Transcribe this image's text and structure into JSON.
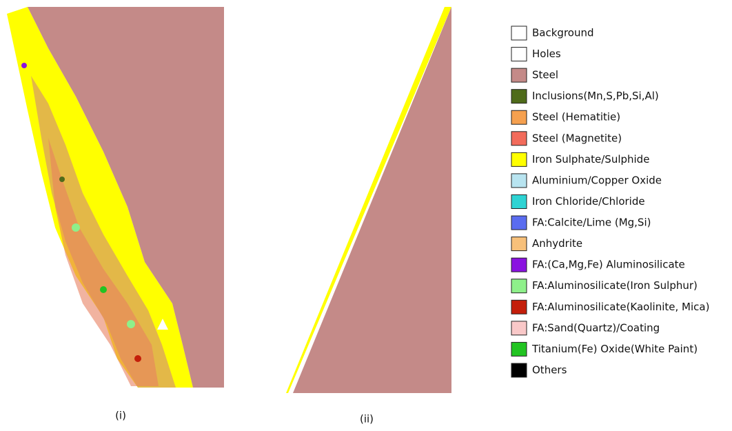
{
  "panels": [
    {
      "caption": "(i)"
    },
    {
      "caption": "(ii)"
    }
  ],
  "legend": {
    "items": [
      {
        "label": "Background",
        "color": "#ffffff"
      },
      {
        "label": "Holes",
        "color": "#ffffff"
      },
      {
        "label": "Steel",
        "color": "#c48a88"
      },
      {
        "label": "Inclusions(Mn,S,Pb,Si,Al)",
        "color": "#4f6b1a"
      },
      {
        "label": "Steel (Hematitie)",
        "color": "#f5a04f"
      },
      {
        "label": "Steel (Magnetite)",
        "color": "#f26b5b"
      },
      {
        "label": "Iron Sulphate/Sulphide",
        "color": "#ffff00"
      },
      {
        "label": "Aluminium/Copper Oxide",
        "color": "#b8e4f0"
      },
      {
        "label": "Iron Chloride/Chloride",
        "color": "#2ed3d3"
      },
      {
        "label": "FA:Calcite/Lime (Mg,Si)",
        "color": "#5a6cf0"
      },
      {
        "label": "Anhydrite",
        "color": "#f7c07a"
      },
      {
        "label": "FA:(Ca,Mg,Fe) Aluminosilicate",
        "color": "#8a12e0"
      },
      {
        "label": "FA:Aluminosilicate(Iron Sulphur)",
        "color": "#8ef08a"
      },
      {
        "label": "FA:Aluminosilicate(Kaolinite, Mica)",
        "color": "#c41e0a"
      },
      {
        "label": "FA:Sand(Quartz)/Coating",
        "color": "#f9c8c8"
      },
      {
        "label": "Titanium(Fe) Oxide(White Paint)",
        "color": "#22c422"
      },
      {
        "label": "Others",
        "color": "#000000"
      }
    ]
  }
}
